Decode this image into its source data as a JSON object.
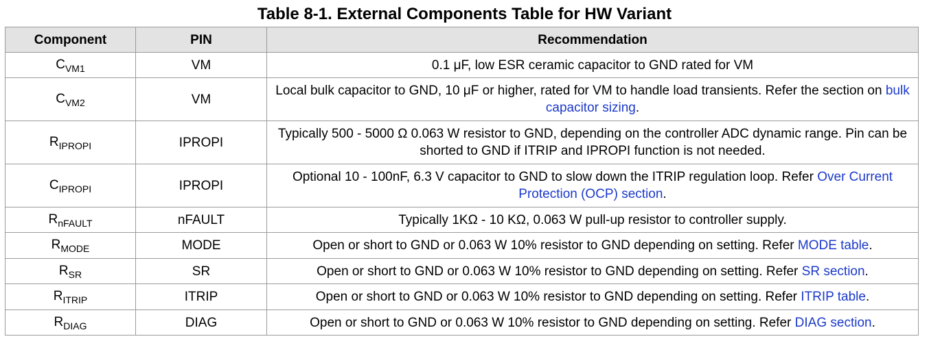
{
  "title": "Table 8-1. External Components Table for HW Variant",
  "columns": {
    "component": "Component",
    "pin": "PIN",
    "recommendation": "Recommendation"
  },
  "colors": {
    "header_bg": "#e3e3e3",
    "border": "#9a9a9a",
    "link": "#1b39c9"
  },
  "rows": [
    {
      "component_base": "C",
      "component_sub": "VM1",
      "pin": "VM",
      "rec_text": "0.1 μF, low ESR ceramic capacitor to GND rated for VM"
    },
    {
      "component_base": "C",
      "component_sub": "VM2",
      "pin": "VM",
      "rec_text": "Local bulk capacitor to GND, 10 μF or higher, rated for VM to handle load transients. Refer the section on ",
      "rec_link": "bulk capacitor sizing",
      "rec_tail": "."
    },
    {
      "component_base": "R",
      "component_sub": "IPROPI",
      "pin": "IPROPI",
      "rec_text": "Typically 500 - 5000 Ω 0.063 W resistor to GND, depending on the controller ADC dynamic range. Pin can be shorted to GND if ITRIP and IPROPI function is not needed."
    },
    {
      "component_base": "C",
      "component_sub": "IPROPI",
      "pin": "IPROPI",
      "rec_text": "Optional 10 - 100nF, 6.3 V capacitor to GND to slow down the ITRIP regulation loop. Refer ",
      "rec_link": "Over Current Protection (OCP) section",
      "rec_tail": "."
    },
    {
      "component_base": "R",
      "component_sub": "nFAULT",
      "pin": "nFAULT",
      "rec_text": "Typically 1KΩ - 10 KΩ, 0.063 W pull-up resistor to controller supply."
    },
    {
      "component_base": "R",
      "component_sub": "MODE",
      "pin": "MODE",
      "rec_text": "Open or short to GND or 0.063 W 10% resistor to GND depending on setting. Refer ",
      "rec_link": "MODE table",
      "rec_tail": "."
    },
    {
      "component_base": "R",
      "component_sub": "SR",
      "pin": "SR",
      "rec_text": "Open or short to GND or 0.063 W 10% resistor to GND depending on setting. Refer ",
      "rec_link": "SR section",
      "rec_tail": "."
    },
    {
      "component_base": "R",
      "component_sub": "ITRIP",
      "pin": "ITRIP",
      "rec_text": "Open or short to GND or 0.063 W 10% resistor to GND depending on setting. Refer ",
      "rec_link": "ITRIP table",
      "rec_tail": "."
    },
    {
      "component_base": "R",
      "component_sub": "DIAG",
      "pin": "DIAG",
      "rec_text": "Open or short to GND or 0.063 W 10% resistor to GND depending on setting. Refer ",
      "rec_link": "DIAG section",
      "rec_tail": "."
    }
  ]
}
